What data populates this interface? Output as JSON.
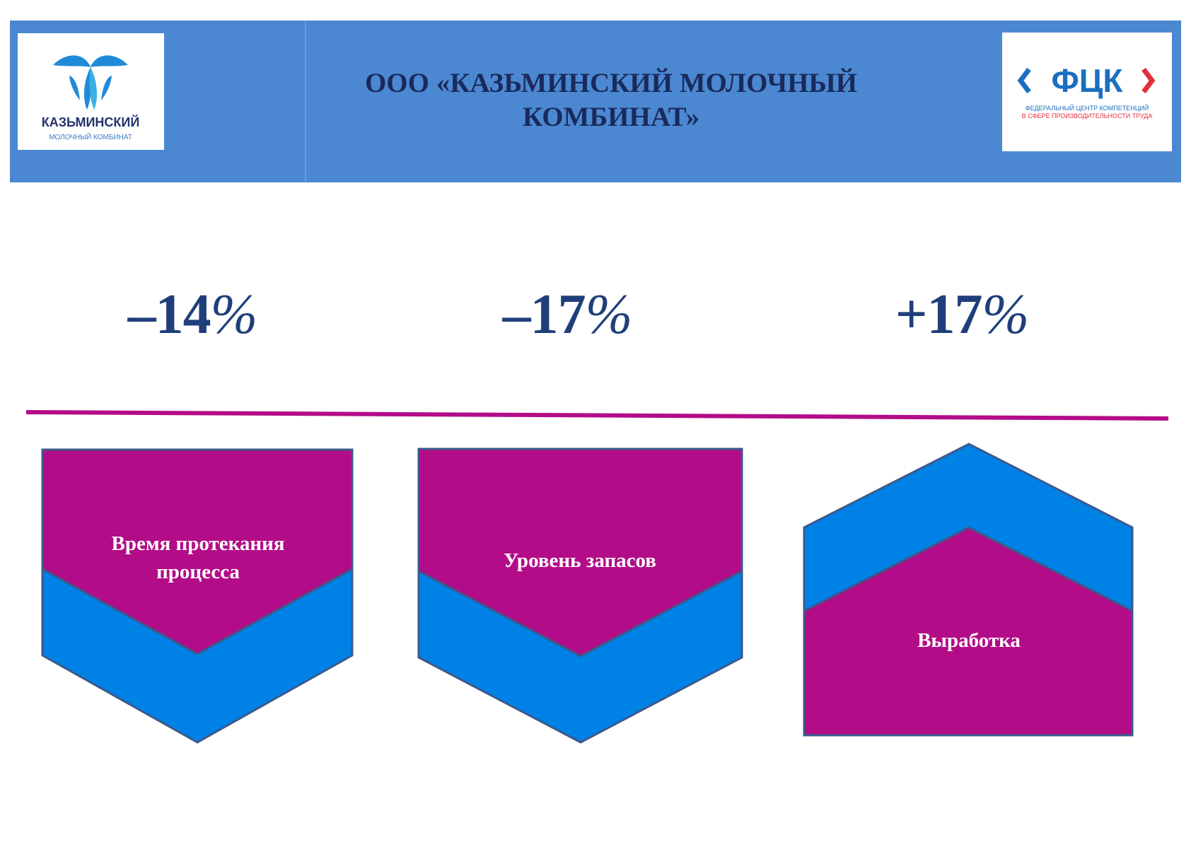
{
  "header": {
    "title_line1": "ООО «КАЗЬМИНСКИЙ МОЛОЧНЫЙ",
    "title_line2": "КОМБИНАТ»",
    "left_logo": {
      "name": "КАЗЬМИНСКИЙ",
      "subtitle": "МОЛОЧНЫЙ КОМБИНАТ"
    },
    "right_logo": {
      "name": "ФЦК",
      "subtitle_line1": "ФЕДЕРАЛЬНЫЙ ЦЕНТР КОМПЕТЕНЦИЙ",
      "subtitle_line2": "В СФЕРЕ ПРОИЗВОДИТЕЛЬНОСТИ ТРУДА"
    }
  },
  "metrics": [
    {
      "number": "–14",
      "percent": "%",
      "label_line1": "Время протекания",
      "label_line2": "процесса",
      "direction": "down"
    },
    {
      "number": "–17",
      "percent": "%",
      "label_line1": "Уровень запасов",
      "label_line2": "",
      "direction": "down"
    },
    {
      "number": "+17",
      "percent": "%",
      "label_line1": "Выработка",
      "label_line2": "",
      "direction": "up"
    }
  ],
  "colors": {
    "header_bg": "#4b88d1",
    "title_text": "#1a2a5c",
    "metric_text": "#1f3f7a",
    "magenta": "#b30c88",
    "blue": "#0081e6",
    "outline": "#3a5a8c"
  }
}
